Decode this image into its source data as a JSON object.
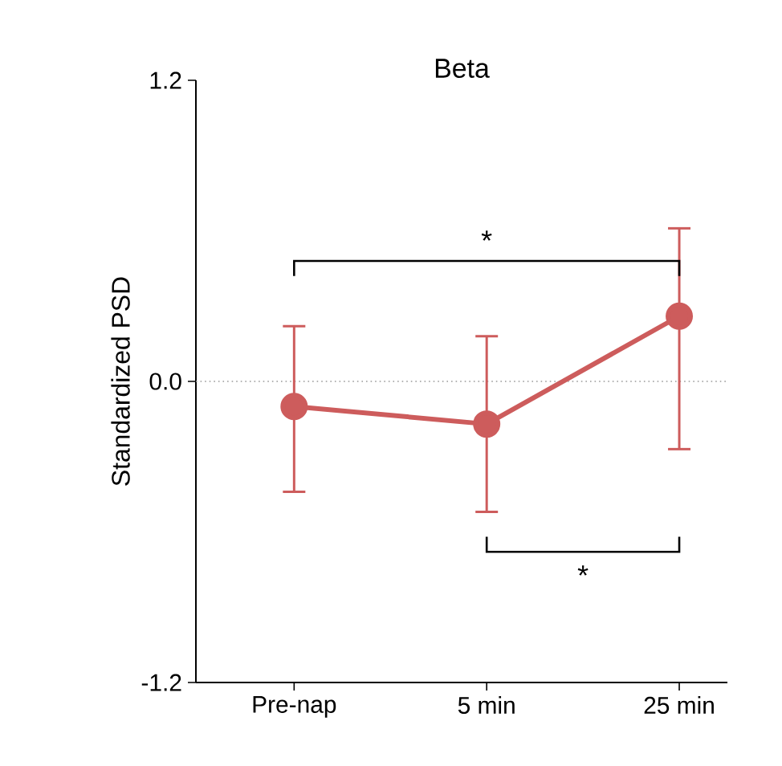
{
  "chart_data": {
    "type": "line",
    "title": "Beta",
    "ylabel": "Standardized PSD",
    "categories": [
      "Pre-nap",
      "5 min",
      "25 min"
    ],
    "series": [
      {
        "color": "#cd5c5c",
        "values": [
          -0.1,
          -0.17,
          0.26
        ],
        "errors": [
          [
            -0.44,
            0.22
          ],
          [
            -0.52,
            0.18
          ],
          [
            -0.27,
            0.61
          ]
        ]
      }
    ],
    "ylim": [
      -1.2,
      1.2
    ],
    "yticks": [
      -1.2,
      {
        "value": 0,
        "label": "0.0"
      },
      1.2
    ],
    "ref_lines": [
      {
        "axis": "y",
        "value": 0,
        "line_style": "dotted",
        "color": "#999999"
      }
    ],
    "annotations": [
      "*",
      "*"
    ],
    "marker": "circle",
    "line_style": "solid",
    "grid": false
  }
}
